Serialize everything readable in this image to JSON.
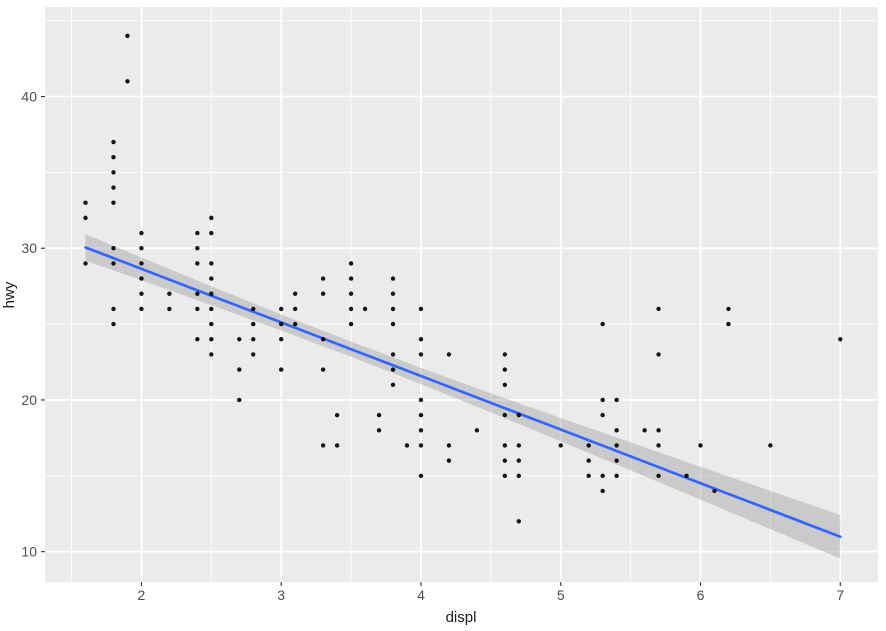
{
  "chart_data": {
    "type": "scatter",
    "title": "",
    "xlabel": "displ",
    "ylabel": "hwy",
    "xlim": [
      1.31,
      7.27
    ],
    "ylim": [
      8.0,
      45.9
    ],
    "x_ticks": [
      2,
      3,
      4,
      5,
      6,
      7
    ],
    "y_ticks": [
      10,
      20,
      30,
      40
    ],
    "x_minor_ticks": [
      1.5,
      2.5,
      3.5,
      4.5,
      5.5,
      6.5
    ],
    "y_minor_ticks": [
      15,
      25,
      35,
      45
    ],
    "grid": true,
    "legend": "none",
    "points": [
      [
        1.6,
        29
      ],
      [
        1.6,
        32
      ],
      [
        1.6,
        33
      ],
      [
        1.8,
        25
      ],
      [
        1.8,
        26
      ],
      [
        1.8,
        29
      ],
      [
        1.8,
        30
      ],
      [
        1.8,
        33
      ],
      [
        1.8,
        34
      ],
      [
        1.8,
        35
      ],
      [
        1.8,
        36
      ],
      [
        1.8,
        37
      ],
      [
        1.9,
        41
      ],
      [
        1.9,
        44
      ],
      [
        2.0,
        26
      ],
      [
        2.0,
        27
      ],
      [
        2.0,
        28
      ],
      [
        2.0,
        29
      ],
      [
        2.0,
        30
      ],
      [
        2.0,
        31
      ],
      [
        2.2,
        26
      ],
      [
        2.2,
        27
      ],
      [
        2.4,
        24
      ],
      [
        2.4,
        26
      ],
      [
        2.4,
        27
      ],
      [
        2.4,
        29
      ],
      [
        2.4,
        30
      ],
      [
        2.4,
        31
      ],
      [
        2.5,
        23
      ],
      [
        2.5,
        24
      ],
      [
        2.5,
        25
      ],
      [
        2.5,
        26
      ],
      [
        2.5,
        27
      ],
      [
        2.5,
        28
      ],
      [
        2.5,
        29
      ],
      [
        2.5,
        31
      ],
      [
        2.5,
        32
      ],
      [
        2.7,
        20
      ],
      [
        2.7,
        22
      ],
      [
        2.7,
        24
      ],
      [
        2.8,
        23
      ],
      [
        2.8,
        24
      ],
      [
        2.8,
        25
      ],
      [
        2.8,
        26
      ],
      [
        3.0,
        22
      ],
      [
        3.0,
        24
      ],
      [
        3.0,
        25
      ],
      [
        3.0,
        26
      ],
      [
        3.1,
        25
      ],
      [
        3.1,
        26
      ],
      [
        3.1,
        27
      ],
      [
        3.3,
        17
      ],
      [
        3.3,
        22
      ],
      [
        3.3,
        24
      ],
      [
        3.3,
        27
      ],
      [
        3.3,
        28
      ],
      [
        3.4,
        17
      ],
      [
        3.4,
        19
      ],
      [
        3.5,
        25
      ],
      [
        3.5,
        26
      ],
      [
        3.5,
        27
      ],
      [
        3.5,
        28
      ],
      [
        3.5,
        29
      ],
      [
        3.6,
        26
      ],
      [
        3.7,
        18
      ],
      [
        3.7,
        19
      ],
      [
        3.8,
        21
      ],
      [
        3.8,
        22
      ],
      [
        3.8,
        23
      ],
      [
        3.8,
        25
      ],
      [
        3.8,
        26
      ],
      [
        3.8,
        27
      ],
      [
        3.8,
        28
      ],
      [
        3.9,
        17
      ],
      [
        4.0,
        15
      ],
      [
        4.0,
        17
      ],
      [
        4.0,
        18
      ],
      [
        4.0,
        19
      ],
      [
        4.0,
        20
      ],
      [
        4.0,
        23
      ],
      [
        4.0,
        24
      ],
      [
        4.0,
        26
      ],
      [
        4.2,
        16
      ],
      [
        4.2,
        17
      ],
      [
        4.2,
        23
      ],
      [
        4.4,
        18
      ],
      [
        4.6,
        15
      ],
      [
        4.6,
        16
      ],
      [
        4.6,
        17
      ],
      [
        4.6,
        19
      ],
      [
        4.6,
        21
      ],
      [
        4.6,
        22
      ],
      [
        4.6,
        23
      ],
      [
        4.7,
        12
      ],
      [
        4.7,
        15
      ],
      [
        4.7,
        16
      ],
      [
        4.7,
        17
      ],
      [
        4.7,
        19
      ],
      [
        5.0,
        17
      ],
      [
        5.2,
        15
      ],
      [
        5.2,
        16
      ],
      [
        5.2,
        17
      ],
      [
        5.3,
        14
      ],
      [
        5.3,
        15
      ],
      [
        5.3,
        19
      ],
      [
        5.3,
        20
      ],
      [
        5.3,
        25
      ],
      [
        5.4,
        15
      ],
      [
        5.4,
        16
      ],
      [
        5.4,
        17
      ],
      [
        5.4,
        18
      ],
      [
        5.4,
        20
      ],
      [
        5.6,
        18
      ],
      [
        5.7,
        15
      ],
      [
        5.7,
        17
      ],
      [
        5.7,
        18
      ],
      [
        5.7,
        23
      ],
      [
        5.7,
        26
      ],
      [
        5.9,
        15
      ],
      [
        6.0,
        17
      ],
      [
        6.1,
        14
      ],
      [
        6.2,
        25
      ],
      [
        6.2,
        26
      ],
      [
        6.5,
        17
      ],
      [
        7.0,
        24
      ]
    ],
    "smooth": {
      "method": "lm",
      "x": [
        1.6,
        2.0,
        2.5,
        3.0,
        3.5,
        4.0,
        4.5,
        5.0,
        5.5,
        6.0,
        6.5,
        7.0
      ],
      "fit": [
        30.05,
        28.64,
        26.87,
        25.11,
        23.34,
        21.58,
        19.81,
        18.05,
        16.28,
        14.51,
        12.75,
        10.98
      ],
      "lower": [
        29.18,
        27.89,
        26.25,
        24.58,
        22.85,
        21.04,
        19.18,
        17.28,
        15.36,
        13.43,
        11.49,
        9.54
      ],
      "upper": [
        30.92,
        29.39,
        27.49,
        25.63,
        23.84,
        22.11,
        20.44,
        18.81,
        17.2,
        15.6,
        14.01,
        12.42
      ]
    },
    "colors": {
      "background": "#FFFFFF",
      "panel": "#EBEBEB",
      "grid": "#FFFFFF",
      "point": "#000000",
      "smooth_line": "#3366FF",
      "ribbon": "#999999",
      "tick_text": "#4D4D4D",
      "axis_title_text": "#1A1A1A"
    }
  }
}
